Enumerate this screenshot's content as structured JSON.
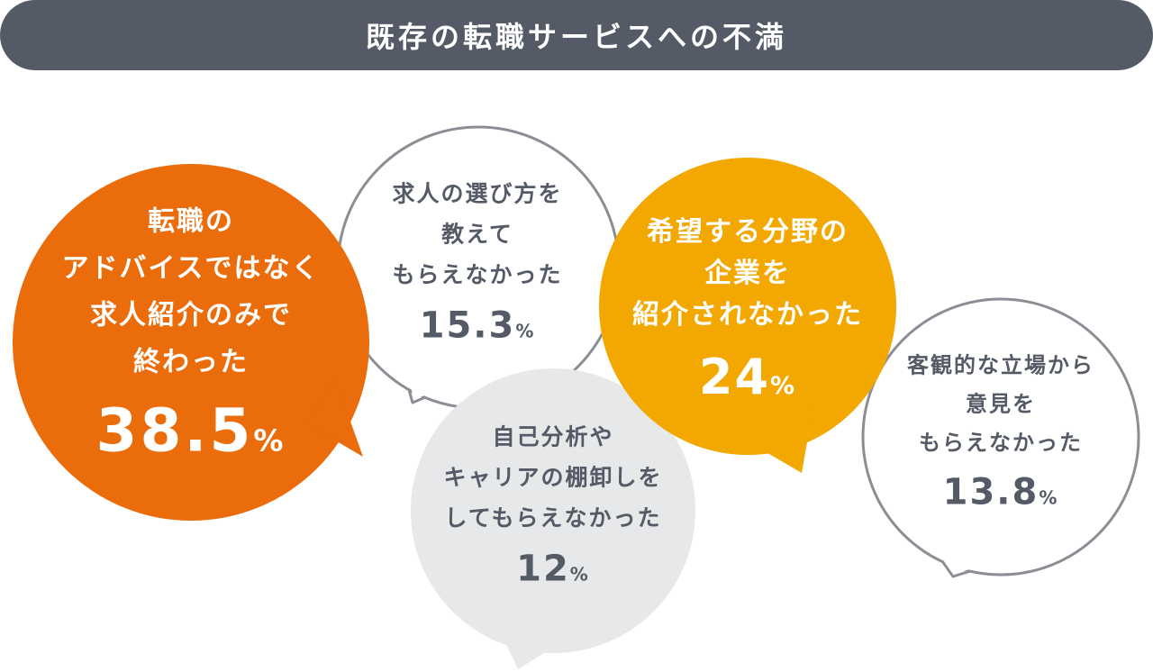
{
  "title": "既存の転職サービスへの不満",
  "colors": {
    "header_bg": "#555b66",
    "orange": "#ea6c0a",
    "amber": "#f2a800",
    "light_gray": "#e7e8ea",
    "outline_gray": "#8b8f95",
    "dark_text": "#555b66",
    "white": "#ffffff"
  },
  "chart_data": {
    "type": "bubble",
    "unit": "%",
    "items": [
      {
        "id": "b1",
        "label_lines": [
          "転職の",
          "アドバイスではなく",
          "求人紹介のみで",
          "終わった"
        ],
        "value": 38.5,
        "value_text": "38.5",
        "pct_text": "%",
        "style": "orange"
      },
      {
        "id": "b2",
        "label_lines": [
          "求人の選び方を",
          "教えて",
          "もらえなかった"
        ],
        "value": 15.3,
        "value_text": "15.3",
        "pct_text": "%",
        "style": "outline"
      },
      {
        "id": "b3",
        "label_lines": [
          "自己分析や",
          "キャリアの棚卸しを",
          "してもらえなかった"
        ],
        "value": 12,
        "value_text": "12",
        "pct_text": "%",
        "style": "light-gray"
      },
      {
        "id": "b4",
        "label_lines": [
          "希望する分野の",
          "企業を",
          "紹介されなかった"
        ],
        "value": 24,
        "value_text": "24",
        "pct_text": "%",
        "style": "amber"
      },
      {
        "id": "b5",
        "label_lines": [
          "客観的な立場から",
          "意見を",
          "もらえなかった"
        ],
        "value": 13.8,
        "value_text": "13.8",
        "pct_text": "%",
        "style": "outline"
      }
    ]
  }
}
